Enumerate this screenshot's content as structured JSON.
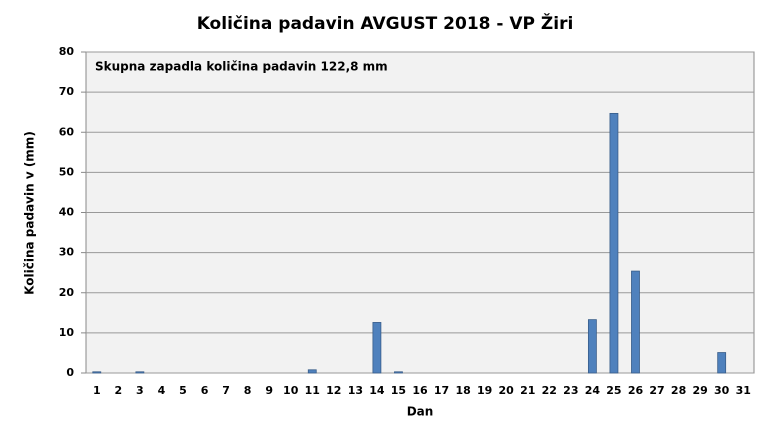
{
  "chart_data": {
    "type": "bar",
    "title": "Količina padavin AVGUST 2018 - VP Žiri",
    "annotation": "Skupna zapadla količina padavin 122,8 mm",
    "x_label": "Dan",
    "y_label": "Količina padavin v  (mm)",
    "categories": [
      1,
      2,
      3,
      4,
      5,
      6,
      7,
      8,
      9,
      10,
      11,
      12,
      13,
      14,
      15,
      16,
      17,
      18,
      19,
      20,
      21,
      22,
      23,
      24,
      25,
      26,
      27,
      28,
      29,
      30,
      31
    ],
    "values": [
      0.3,
      0,
      0.3,
      0,
      0,
      0,
      0,
      0,
      0,
      0,
      0.8,
      0,
      0,
      12.6,
      0.3,
      0,
      0,
      0,
      0,
      0,
      0,
      0,
      0,
      13.3,
      64.7,
      25.4,
      0,
      0,
      0,
      5.1,
      0
    ],
    "color": "#4f81bd",
    "ylim": [
      0,
      80
    ],
    "yticks": [
      0,
      10,
      20,
      30,
      40,
      50,
      60,
      70,
      80
    ],
    "grid": true
  }
}
